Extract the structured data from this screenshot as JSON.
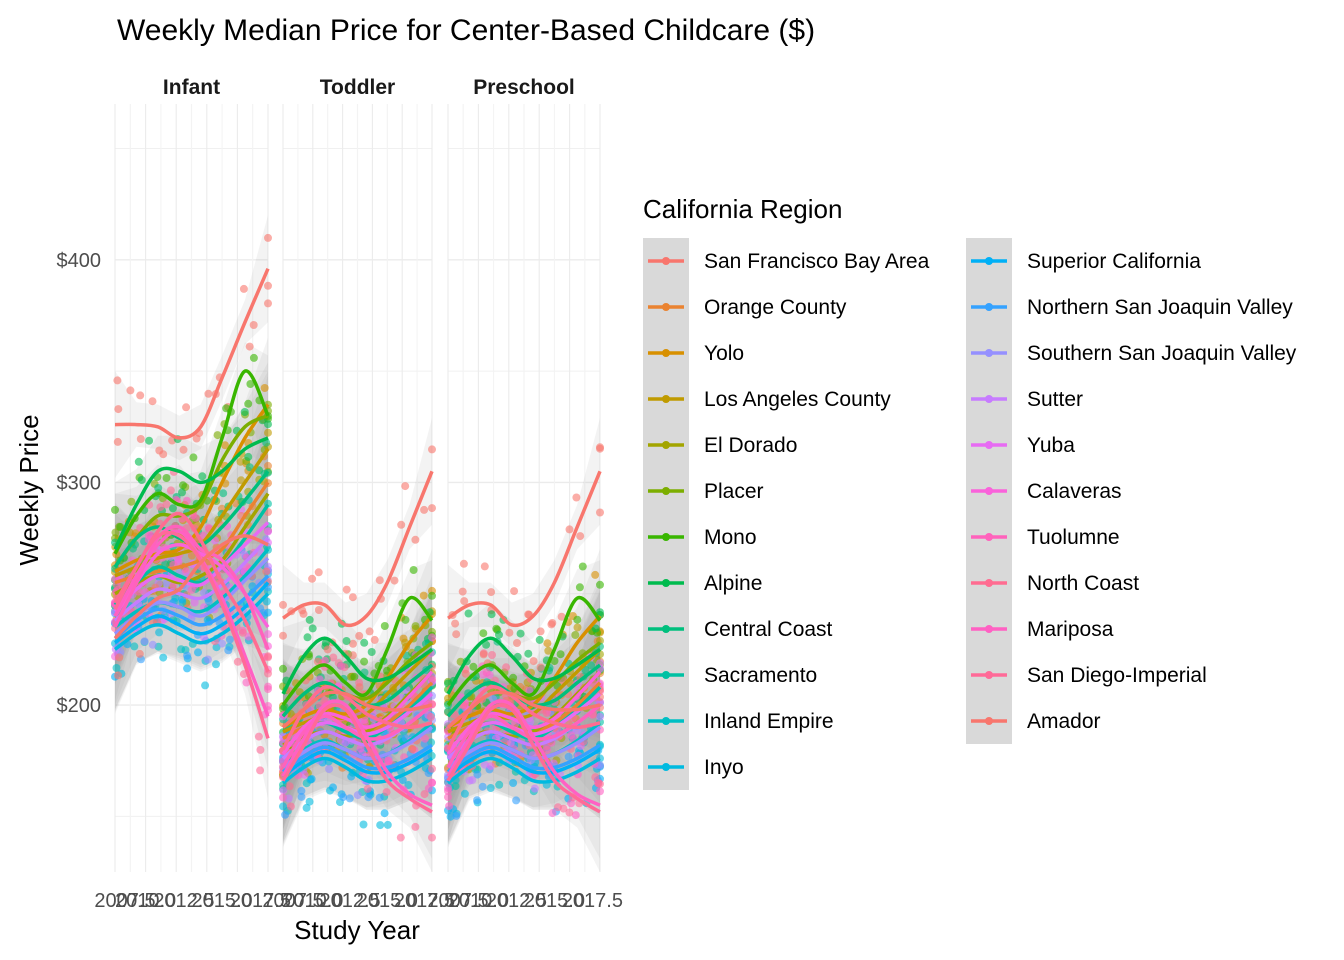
{
  "chart_data": {
    "type": "scatter",
    "title": "Weekly Median Price for Center-Based Childcare ($)",
    "xlabel": "Study Year",
    "ylabel": "Weekly Price",
    "xlim": [
      2008,
      2018
    ],
    "ylim": [
      125,
      470
    ],
    "y_ticks": [
      200,
      300,
      400
    ],
    "y_tick_labels": [
      "$200",
      "$300",
      "$400"
    ],
    "x_tick_labels": [
      "2007.5",
      "2010.0",
      "2012.5",
      "2015.0",
      "2017.5"
    ],
    "facets": [
      "Infant",
      "Toddler",
      "Preschool"
    ],
    "grid": true,
    "smoother": "loess with grey confidence band",
    "legend": {
      "title": "California Region",
      "position": "right",
      "columns": 2
    },
    "series": [
      {
        "name": "San Francisco Bay Area",
        "color": "#F8766D",
        "infant": [
          326,
          326,
          325,
          320,
          325,
          347,
          372,
          396
        ],
        "toddler": [
          239,
          245,
          245,
          236,
          240,
          255,
          280,
          305
        ]
      },
      {
        "name": "Orange County",
        "color": "#EA8331",
        "infant": [
          255,
          258,
          260,
          262,
          265,
          270,
          285,
          300
        ],
        "toddler": [
          185,
          190,
          192,
          190,
          188,
          192,
          200,
          210
        ]
      },
      {
        "name": "Yolo",
        "color": "#D89000",
        "infant": [
          260,
          265,
          268,
          270,
          280,
          300,
          320,
          335
        ],
        "toddler": [
          190,
          195,
          198,
          196,
          200,
          212,
          228,
          240
        ]
      },
      {
        "name": "Los Angeles County",
        "color": "#C09B00",
        "infant": [
          258,
          262,
          266,
          268,
          272,
          285,
          300,
          315
        ],
        "toddler": [
          188,
          192,
          195,
          194,
          196,
          205,
          215,
          225
        ]
      },
      {
        "name": "El Dorado",
        "color": "#A3A500",
        "infant": [
          250,
          255,
          258,
          255,
          258,
          265,
          280,
          295
        ],
        "toddler": [
          182,
          186,
          188,
          186,
          188,
          195,
          205,
          215
        ]
      },
      {
        "name": "Placer",
        "color": "#7CAE00",
        "infant": [
          262,
          275,
          285,
          285,
          290,
          310,
          325,
          330
        ],
        "toddler": [
          195,
          205,
          210,
          205,
          203,
          210,
          220,
          228
        ]
      },
      {
        "name": "Mono",
        "color": "#39B600",
        "infant": [
          268,
          285,
          295,
          290,
          292,
          320,
          350,
          330
        ],
        "toddler": [
          200,
          212,
          218,
          210,
          205,
          225,
          248,
          238
        ]
      },
      {
        "name": "Alpine",
        "color": "#00BB4E",
        "infant": [
          270,
          290,
          305,
          305,
          300,
          305,
          315,
          320
        ],
        "toddler": [
          205,
          222,
          230,
          222,
          212,
          212,
          218,
          225
        ]
      },
      {
        "name": "Central Coast",
        "color": "#00BF7D",
        "infant": [
          262,
          275,
          280,
          275,
          272,
          280,
          292,
          305
        ],
        "toddler": [
          195,
          205,
          210,
          205,
          200,
          202,
          210,
          218
        ]
      },
      {
        "name": "Sacramento",
        "color": "#00C1A3",
        "infant": [
          245,
          255,
          262,
          258,
          255,
          262,
          275,
          290
        ],
        "toddler": [
          180,
          188,
          192,
          188,
          185,
          190,
          198,
          208
        ]
      },
      {
        "name": "Inland Empire",
        "color": "#00BFC4",
        "infant": [
          235,
          242,
          246,
          244,
          242,
          248,
          258,
          270
        ],
        "toddler": [
          172,
          180,
          184,
          180,
          176,
          178,
          184,
          192
        ]
      },
      {
        "name": "Inyo",
        "color": "#00BAE0",
        "infant": [
          225,
          232,
          236,
          232,
          228,
          232,
          240,
          250
        ],
        "toddler": [
          165,
          172,
          176,
          172,
          166,
          166,
          170,
          176
        ]
      },
      {
        "name": "Superior California",
        "color": "#00B0F6",
        "infant": [
          228,
          235,
          240,
          236,
          232,
          236,
          244,
          255
        ],
        "toddler": [
          168,
          175,
          179,
          175,
          170,
          170,
          174,
          180
        ]
      },
      {
        "name": "Northern San Joaquin Valley",
        "color": "#35A2FF",
        "infant": [
          230,
          238,
          243,
          240,
          236,
          240,
          248,
          258
        ],
        "toddler": [
          170,
          177,
          181,
          177,
          172,
          172,
          176,
          182
        ]
      },
      {
        "name": "Southern San Joaquin Valley",
        "color": "#9590FF",
        "infant": [
          232,
          240,
          246,
          244,
          240,
          246,
          256,
          266
        ],
        "toddler": [
          172,
          179,
          183,
          180,
          176,
          178,
          183,
          190
        ]
      },
      {
        "name": "Sutter",
        "color": "#C77CFF",
        "infant": [
          238,
          246,
          252,
          250,
          248,
          254,
          264,
          275
        ],
        "toddler": [
          176,
          184,
          188,
          185,
          182,
          185,
          192,
          200
        ]
      },
      {
        "name": "Yuba",
        "color": "#E76BF3",
        "infant": [
          242,
          252,
          258,
          256,
          254,
          262,
          272,
          282
        ],
        "toddler": [
          180,
          188,
          192,
          190,
          187,
          190,
          197,
          205
        ]
      },
      {
        "name": "Calaveras",
        "color": "#FA62DB",
        "infant": [
          240,
          255,
          268,
          272,
          268,
          262,
          250,
          235
        ],
        "toddler": [
          178,
          190,
          196,
          194,
          190,
          194,
          204,
          215
        ]
      },
      {
        "name": "Tuolumne",
        "color": "#FF62BC",
        "infant": [
          235,
          255,
          275,
          280,
          270,
          265,
          250,
          225
        ],
        "toddler": [
          172,
          188,
          195,
          190,
          185,
          186,
          192,
          200
        ]
      },
      {
        "name": "North Coast",
        "color": "#FF6C91",
        "infant": [
          246,
          262,
          278,
          286,
          274,
          255,
          238,
          215
        ],
        "toddler": [
          180,
          198,
          208,
          204,
          196,
          192,
          190,
          192
        ]
      },
      {
        "name": "Mariposa",
        "color": "#FF61C3",
        "infant": [
          240,
          258,
          272,
          278,
          266,
          248,
          222,
          195
        ],
        "toddler": [
          168,
          185,
          200,
          200,
          186,
          170,
          160,
          155
        ]
      },
      {
        "name": "San Diego-Imperial",
        "color": "#FF6A98",
        "infant": [
          243,
          262,
          276,
          276,
          265,
          245,
          218,
          185
        ],
        "toddler": [
          166,
          182,
          198,
          198,
          182,
          166,
          158,
          152
        ]
      },
      {
        "name": "Amador",
        "color": "#F8766D",
        "infant": [
          230,
          240,
          248,
          252,
          264,
          272,
          276,
          272
        ],
        "toddler": [
          190,
          198,
          205,
          205,
          200,
          198,
          198,
          200
        ]
      }
    ]
  }
}
